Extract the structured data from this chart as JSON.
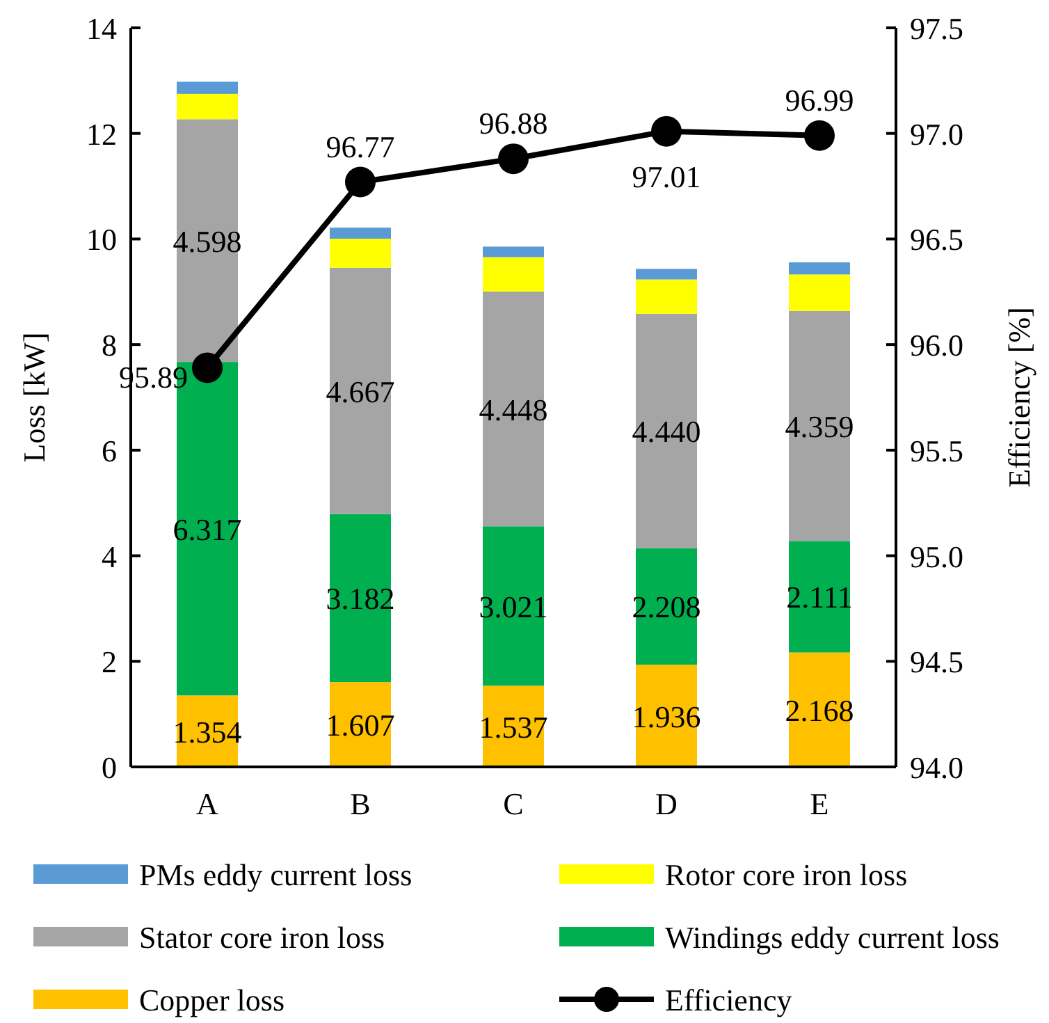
{
  "chart_data": {
    "type": "bar",
    "stacked": true,
    "categories": [
      "A",
      "B",
      "C",
      "D",
      "E"
    ],
    "ylabel": "Loss [kW]",
    "y2label": "Efficiency [%]",
    "ylim": [
      0,
      14
    ],
    "yticks": [
      0,
      2,
      4,
      6,
      8,
      10,
      12,
      14
    ],
    "y2lim": [
      94,
      97.5
    ],
    "y2ticks": [
      {
        "value": 94,
        "label": "94.0"
      },
      {
        "value": 94.5,
        "label": "94.5"
      },
      {
        "value": 95,
        "label": "95.0"
      },
      {
        "value": 95.5,
        "label": "95.5"
      },
      {
        "value": 96,
        "label": "96.0"
      },
      {
        "value": 96.5,
        "label": "96.5"
      },
      {
        "value": 97,
        "label": "97.0"
      },
      {
        "value": 97.5,
        "label": "97.5"
      }
    ],
    "legend": "bottom",
    "grid": false,
    "series": [
      {
        "name": "Copper loss",
        "color": "#ffc000",
        "values": [
          1.354,
          1.607,
          1.537,
          1.936,
          2.168
        ],
        "value_labels": [
          "1.354",
          "1.607",
          "1.537",
          "1.936",
          "2.168"
        ]
      },
      {
        "name": "Windings eddy current loss",
        "color": "#00b050",
        "values": [
          6.317,
          3.182,
          3.021,
          2.208,
          2.111
        ],
        "value_labels": [
          "6.317",
          "3.182",
          "3.021",
          "2.208",
          "2.111"
        ]
      },
      {
        "name": "Stator core iron loss",
        "color": "#a5a5a5",
        "values": [
          4.598,
          4.667,
          4.448,
          4.44,
          4.359
        ],
        "value_labels": [
          "4.598",
          "4.667",
          "4.448",
          "4.440",
          "4.359"
        ]
      },
      {
        "name": "Rotor core iron loss",
        "color": "#ffff00",
        "values": [
          0.48,
          0.55,
          0.65,
          0.65,
          0.69
        ]
      },
      {
        "name": "PMs eddy current loss",
        "color": "#5b9bd5",
        "values": [
          0.23,
          0.21,
          0.2,
          0.2,
          0.23
        ]
      },
      {
        "name": "Efficiency",
        "type": "line",
        "axis": "y2",
        "color": "#000000",
        "marker": "circle",
        "values": [
          95.89,
          96.77,
          96.88,
          97.01,
          96.99
        ],
        "value_labels": [
          "95.89",
          "96.77",
          "96.88",
          "97.01",
          "96.99"
        ]
      }
    ]
  }
}
